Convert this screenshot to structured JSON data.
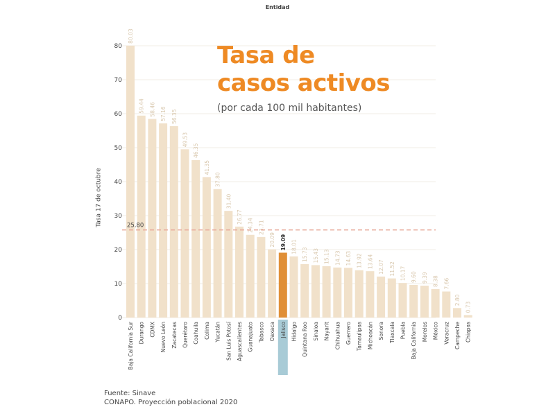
{
  "header": {
    "label": "Entidad"
  },
  "title_line1": "Tasa de",
  "title_line2": "casos activos",
  "subtitle": "(por cada 100 mil habitantes)",
  "source_line1": "Fuente: Sinave",
  "source_line2": "CONAPO. Proyección poblacional 2020",
  "colors": {
    "bar": "#f1e1ca",
    "highlight_bar": "#e08f37",
    "highlight_label_bg": "#a8cbd6",
    "value_label": "#d9c8ae",
    "reference_line": "#e7a797",
    "title": "#ee8a24"
  },
  "chart_data": {
    "type": "bar",
    "xlabel": "Entidad",
    "ylabel": "Tasa 17 de octubre",
    "ylim": [
      0,
      80
    ],
    "yticks": [
      0,
      10,
      20,
      30,
      40,
      50,
      60,
      70,
      80
    ],
    "grid": true,
    "reference_line": {
      "value": 25.8,
      "label": "25.80"
    },
    "highlight": "Jalisco",
    "categories": [
      "Baja California Sur",
      "Durango",
      "CDMX",
      "Nuevo León",
      "Zacatecas",
      "Querétaro",
      "Coahuila",
      "Colima",
      "Yucatán",
      "San Luis Potosí",
      "Aguascalientes",
      "Guanajuato",
      "Tabasco",
      "Oaxaca",
      "Jalisco",
      "Hidalgo",
      "Quintana Roo",
      "Sinaloa",
      "Nayarit",
      "Chihuahua",
      "Guerrero",
      "Tamaulipas",
      "Michoacán",
      "Sonora",
      "Tlaxcala",
      "Puebla",
      "Baja California",
      "Morelos",
      "México",
      "Veracruz",
      "Campeche",
      "Chiapas"
    ],
    "values": [
      80.03,
      59.44,
      58.46,
      57.16,
      56.35,
      49.53,
      46.35,
      41.35,
      37.8,
      31.4,
      26.77,
      24.34,
      23.71,
      20.09,
      19.09,
      18.01,
      15.73,
      15.43,
      15.13,
      14.73,
      14.63,
      13.92,
      13.64,
      12.07,
      11.52,
      10.17,
      9.6,
      9.39,
      8.38,
      7.66,
      2.8,
      0.73
    ],
    "value_labels": [
      "80.03",
      "59.44",
      "58.46",
      "57.16",
      "56.35",
      "49.53",
      "46.35",
      "41.35",
      "37.80",
      "31.40",
      "26.77",
      "24.34",
      "23.71",
      "20.09",
      "19.09",
      "18.01",
      "15.73",
      "15.43",
      "15.13",
      "14.73",
      "14.63",
      "13.92",
      "13.64",
      "12.07",
      "11.52",
      "10.17",
      "9.60",
      "9.39",
      "8.38",
      "7.66",
      "2.80",
      "0.73"
    ]
  }
}
